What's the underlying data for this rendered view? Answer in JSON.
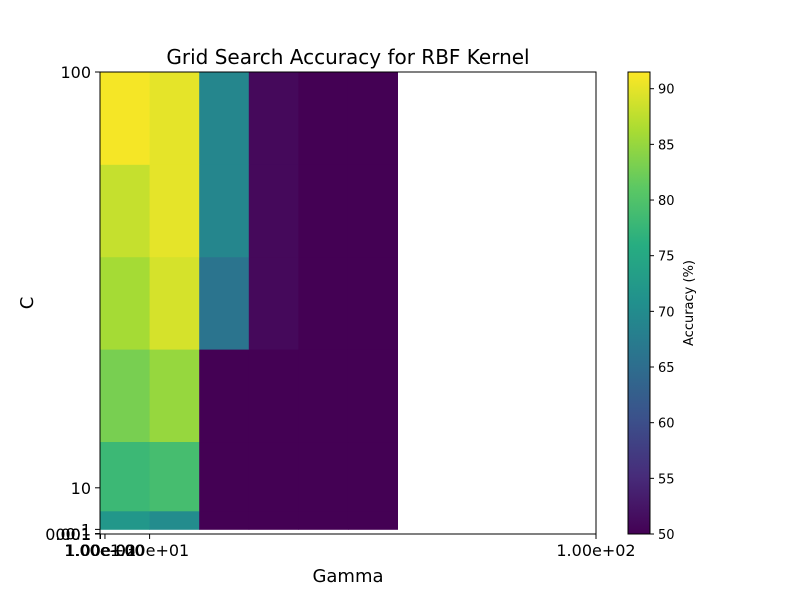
{
  "chart_data": {
    "type": "heatmap",
    "title": "Grid Search Accuracy for RBF Kernel",
    "xlabel": "Gamma",
    "ylabel": "C",
    "colorbar_label": "Accuracy (%)",
    "colormap": "viridis",
    "vmin": 50,
    "vmax": 91.5,
    "colorbar_ticks": [
      "50",
      "55",
      "60",
      "65",
      "70",
      "75",
      "80",
      "85",
      "90"
    ],
    "colorbar_tick_values": [
      50,
      55,
      60,
      65,
      70,
      75,
      80,
      85,
      90
    ],
    "x_cell_edges": [
      0.001,
      10,
      20,
      30,
      40,
      50,
      60
    ],
    "y_cell_edges": [
      1,
      5,
      20,
      40,
      60,
      80,
      100
    ],
    "xlim": [
      0.001,
      100
    ],
    "ylim": [
      0.001,
      100
    ],
    "x_ticks": [
      {
        "value": 0.001,
        "label": "1.00e-03"
      },
      {
        "value": 0.01,
        "label": "1.00e-02"
      },
      {
        "value": 0.1,
        "label": "1.00e-01"
      },
      {
        "value": 1,
        "label": "1.00e+00"
      },
      {
        "value": 10,
        "label": "1.00e+01"
      },
      {
        "value": 100,
        "label": "1.00e+02"
      }
    ],
    "y_ticks": [
      {
        "value": 0.001,
        "label": "0.001"
      },
      {
        "value": 0.01,
        "label": "0.01"
      },
      {
        "value": 0.1,
        "label": "0.1"
      },
      {
        "value": 1,
        "label": "1"
      },
      {
        "value": 10,
        "label": "10"
      },
      {
        "value": 100,
        "label": "100"
      }
    ],
    "values": [
      [
        72,
        70,
        50,
        50,
        50,
        50
      ],
      [
        78,
        79,
        50,
        50,
        50,
        50
      ],
      [
        83,
        85,
        50,
        50,
        50,
        50
      ],
      [
        86,
        89,
        66,
        51,
        50,
        50
      ],
      [
        88,
        90,
        69,
        51,
        50,
        50
      ],
      [
        91,
        90,
        69,
        51,
        50,
        50
      ]
    ]
  }
}
